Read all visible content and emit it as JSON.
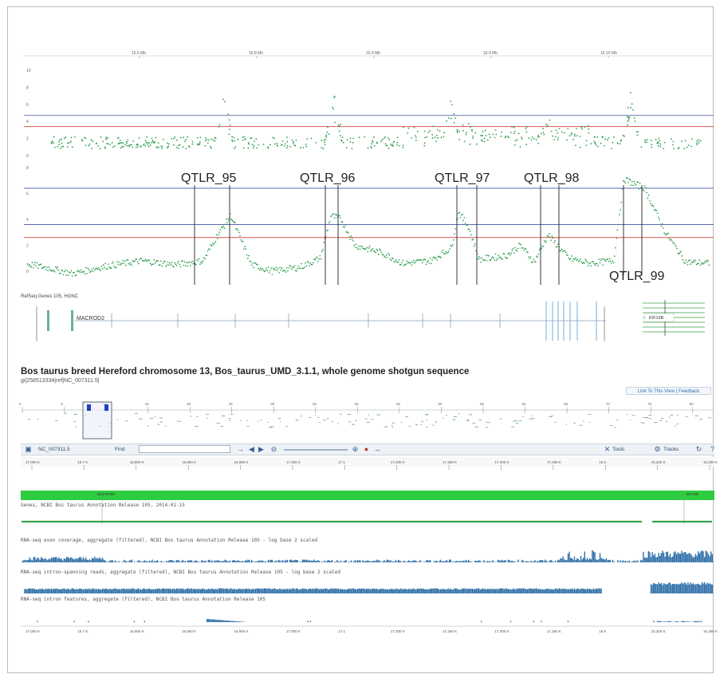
{
  "colors": {
    "points": "#2e9e4f",
    "blue_threshold": "#5a6bb0",
    "red_threshold": "#d9534f",
    "annotation": "#222222",
    "genome_bar": "#2ecc40",
    "coverage_fill": "#2f6fa8",
    "gene_model": "#39a34a",
    "exon": "#7fb4e0"
  },
  "chart_data": [
    {
      "type": "scatter",
      "panel": "top",
      "x_tick_labels": [
        "16.6 Mb",
        "16.8 Mb",
        "16.9 Mb",
        "16.9 Mb",
        "16.10 Mb"
      ],
      "y_ticks": [
        0,
        2,
        4,
        6,
        8,
        10
      ],
      "ylim": [
        0,
        10
      ],
      "thresholds": [
        4.7,
        3.4
      ],
      "grid": false,
      "series": [
        {
          "peaks": [
            {
              "x": 0.29,
              "y": 7.6
            },
            {
              "x": 0.45,
              "y": 7.4
            },
            {
              "x": 0.62,
              "y": 8.0
            },
            {
              "x": 0.76,
              "y": 5.5
            },
            {
              "x": 0.88,
              "y": 8.6
            }
          ]
        }
      ]
    },
    {
      "type": "line",
      "panel": "bottom",
      "y_ticks": [
        0,
        2,
        4,
        6,
        8
      ],
      "ylim": [
        0,
        8
      ],
      "thresholds": [
        6.4,
        3.6,
        2.6
      ],
      "grid": false,
      "series": [
        {
          "x": [
            0.0,
            0.04,
            0.07,
            0.12,
            0.17,
            0.22,
            0.26,
            0.28,
            0.3,
            0.33,
            0.36,
            0.4,
            0.43,
            0.445,
            0.46,
            0.48,
            0.52,
            0.55,
            0.59,
            0.62,
            0.63,
            0.645,
            0.66,
            0.7,
            0.72,
            0.74,
            0.76,
            0.77,
            0.79,
            0.82,
            0.855,
            0.87,
            0.9,
            0.93,
            0.96,
            1.0
          ],
          "y": [
            0.6,
            0.2,
            -0.2,
            0.4,
            0.8,
            0.5,
            0.8,
            2.7,
            4.3,
            0.5,
            0.0,
            0.3,
            1.0,
            4.3,
            4.0,
            2.0,
            1.4,
            0.6,
            0.8,
            1.8,
            4.6,
            3.4,
            0.9,
            1.2,
            2.0,
            0.7,
            2.8,
            2.2,
            1.0,
            0.6,
            0.8,
            7.1,
            6.4,
            3.0,
            0.7,
            0.6
          ]
        }
      ],
      "annotations": [
        "QTLR_95",
        "QTLR_96",
        "QTLR_97",
        "QTLR_98",
        "QTLR_99"
      ]
    }
  ],
  "qtl_labels": [
    "QTLR_95",
    "QTLR_96",
    "QTLR_97",
    "QTLR_98",
    "QTLR_99"
  ],
  "gene_track": {
    "header": "RefSeq Genes 105, HGNC",
    "gene_name": "MACROD2",
    "right_gene_label": "KIF16B"
  },
  "viewer": {
    "title": "Bos taurus breed Hereford chromosome 13, Bos_taurus_UMD_3.1.1, whole genome shotgun sequence",
    "subtitle": "gi|258513334|ref|NC_007311.5|",
    "link_label": "Link To This View | Feedback",
    "overview_ticks": [
      "0",
      "2.5",
      "5",
      "7.5",
      "10",
      "12.5",
      "15",
      "17.5",
      "20",
      "22.5",
      "25",
      "27.5",
      "30",
      "32.5",
      "35",
      "37.5",
      "40",
      "42.5",
      "45",
      "47.5",
      "50",
      "52.5",
      "55",
      "57.5",
      "60",
      "62.5",
      "65",
      "67.5",
      "70",
      "72.5",
      "75",
      "77.5",
      "80",
      "84,240,350"
    ],
    "toolbar": {
      "sequence_select": "NC_007311.5",
      "find_label": "Find",
      "tools_label": "Tools",
      "tracks_label": "Tracks"
    },
    "ruler_ticks": [
      "17,000 K",
      "16.7 K",
      "16,800 K",
      "16,900 K",
      "16,950 K",
      "17,000 K",
      "17.1",
      "17,200 K",
      "17,250 K",
      "17,300 K",
      "17,350 K",
      "16.5",
      "16,200 K",
      "16,300 K"
    ],
    "tracks": [
      {
        "label": "Genes, NCBI Bos taurus Annotation Release 105, 2014-01-15"
      },
      {
        "label": "RNA-seq exon coverage, aggregate (filtered), NCBI Bos taurus Annotation Release 105 - log base 2 scaled"
      },
      {
        "label": "RNA-seq intron-spanning reads, aggregate (filtered), NCBI Bos taurus Annotation Release 105 - log base 2 scaled"
      },
      {
        "label": "RNA-seq intron features, aggregate (filtered), NCBI Bos taurus Annotation Release 105"
      }
    ],
    "gene_labels": [
      "MACROD2",
      "KIF16B"
    ]
  }
}
